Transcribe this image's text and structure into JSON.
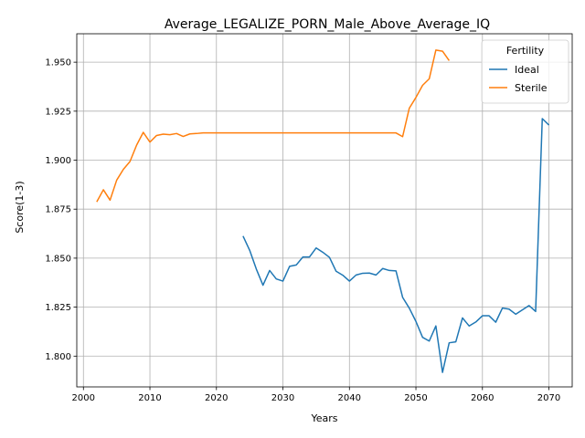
{
  "chart_data": {
    "type": "line",
    "title": "Average_LEGALIZE_PORN_Male_Above_Average_IQ",
    "xlabel": "Years",
    "ylabel": "Score(1-3)",
    "xlim": [
      1999,
      2073.5
    ],
    "ylim": [
      1.7843,
      1.9645
    ],
    "xticks": [
      2000,
      2010,
      2020,
      2030,
      2040,
      2050,
      2060,
      2070
    ],
    "yticks": [
      1.8,
      1.825,
      1.85,
      1.875,
      1.9,
      1.925,
      1.95
    ],
    "ytick_labels": [
      "1.800",
      "1.825",
      "1.850",
      "1.875",
      "1.900",
      "1.925",
      "1.950"
    ],
    "grid": true,
    "legend": {
      "title": "Fertility",
      "placement": "top-right"
    },
    "series": [
      {
        "name": "Ideal",
        "color": "#1f77b4",
        "x": [
          2024,
          2025,
          2026,
          2027,
          2028,
          2029,
          2030,
          2031,
          2032,
          2033,
          2034,
          2035,
          2036,
          2037,
          2038,
          2039,
          2040,
          2041,
          2042,
          2043,
          2044,
          2045,
          2046,
          2047,
          2048,
          2049,
          2050,
          2051,
          2052,
          2053,
          2054,
          2055,
          2056,
          2057,
          2058,
          2059,
          2060,
          2061,
          2062,
          2063,
          2064,
          2065,
          2066,
          2067,
          2068,
          2069,
          2070
        ],
        "y": [
          1.8613,
          1.854,
          1.8444,
          1.8362,
          1.8437,
          1.8394,
          1.8383,
          1.8458,
          1.8465,
          1.8506,
          1.8506,
          1.8552,
          1.853,
          1.8504,
          1.8433,
          1.8413,
          1.8383,
          1.8414,
          1.8423,
          1.8424,
          1.8414,
          1.8447,
          1.8437,
          1.8435,
          1.83,
          1.8245,
          1.8177,
          1.8096,
          1.8077,
          1.8154,
          1.7917,
          1.8068,
          1.8073,
          1.8195,
          1.8154,
          1.8174,
          1.8206,
          1.8206,
          1.8173,
          1.8245,
          1.824,
          1.8214,
          1.8236,
          1.8258,
          1.8228,
          1.9212,
          1.9179
        ]
      },
      {
        "name": "Sterile",
        "color": "#ff7f0e",
        "x": [
          2002,
          2003,
          2004,
          2005,
          2006,
          2007,
          2008,
          2009,
          2010,
          2011,
          2012,
          2013,
          2014,
          2015,
          2016,
          2017,
          2018,
          2019,
          2020,
          2021,
          2022,
          2023,
          2024,
          2025,
          2026,
          2027,
          2028,
          2029,
          2030,
          2031,
          2032,
          2033,
          2034,
          2035,
          2036,
          2037,
          2038,
          2039,
          2040,
          2041,
          2042,
          2043,
          2044,
          2045,
          2046,
          2047,
          2048,
          2049,
          2050,
          2051,
          2052,
          2053,
          2054,
          2055
        ],
        "y": [
          1.8787,
          1.8849,
          1.8796,
          1.8898,
          1.8953,
          1.8993,
          1.9077,
          1.9142,
          1.9092,
          1.9126,
          1.9133,
          1.913,
          1.9136,
          1.9121,
          1.9134,
          1.9136,
          1.9139,
          1.9139,
          1.9139,
          1.9139,
          1.9139,
          1.9139,
          1.9139,
          1.9139,
          1.9139,
          1.9139,
          1.9139,
          1.9139,
          1.9139,
          1.9139,
          1.9139,
          1.9139,
          1.9139,
          1.9139,
          1.9139,
          1.9139,
          1.9139,
          1.9139,
          1.9139,
          1.9139,
          1.9139,
          1.9139,
          1.9139,
          1.9139,
          1.9139,
          1.9139,
          1.912,
          1.9265,
          1.932,
          1.9382,
          1.9415,
          1.9562,
          1.9556,
          1.9508
        ]
      }
    ]
  }
}
